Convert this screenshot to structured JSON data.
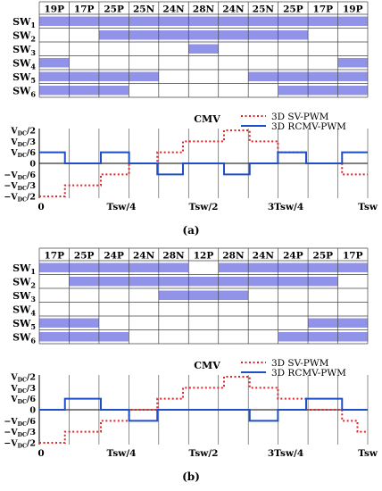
{
  "colors": {
    "bar": "#9193e8",
    "sv": "#e0242a",
    "rcmv": "#1f4fc4",
    "grid": "#444444"
  },
  "panels": [
    {
      "caption": "(a)",
      "vectors": [
        "19P",
        "17P",
        "25P",
        "25N",
        "24N",
        "28N",
        "24N",
        "25N",
        "25P",
        "17P",
        "19P"
      ],
      "switches": [
        {
          "label": "SW",
          "sub": "1",
          "on": [
            [
              0,
              11
            ]
          ]
        },
        {
          "label": "SW",
          "sub": "2",
          "on": [
            [
              2,
              9
            ]
          ]
        },
        {
          "label": "SW",
          "sub": "3",
          "on": [
            [
              5,
              6
            ]
          ]
        },
        {
          "label": "SW",
          "sub": "4",
          "on": [
            [
              0,
              1
            ],
            [
              10,
              11
            ]
          ]
        },
        {
          "label": "SW",
          "sub": "5",
          "on": [
            [
              0,
              4
            ],
            [
              7,
              11
            ]
          ]
        },
        {
          "label": "SW",
          "sub": "6",
          "on": [
            [
              0,
              3
            ],
            [
              8,
              11
            ]
          ]
        }
      ],
      "cmv_title": "CMV",
      "legend": [
        "3D SV-PWM",
        "3D RCMV-PWM"
      ],
      "y_ticks": [
        "V_DC/2",
        "V_DC/3",
        "V_DC/6",
        "0",
        "−V_DC/6",
        "−V_DC/3",
        "−V_DC/2"
      ],
      "x_ticks": [
        "0",
        "Tsw/4",
        "Tsw/2",
        "3Tsw/4",
        "Tsw"
      ],
      "sv_steps": [
        {
          "t": 0,
          "v": -3
        },
        {
          "t": 0.0781,
          "v": -2
        },
        {
          "t": 0.1875,
          "v": -1
        },
        {
          "t": 0.2734,
          "v": 0
        },
        {
          "t": 0.3594,
          "v": 1
        },
        {
          "t": 0.4375,
          "v": 2
        },
        {
          "t": 0.5625,
          "v": 3
        },
        {
          "t": 0.6406,
          "v": 2
        },
        {
          "t": 0.7266,
          "v": 1
        },
        {
          "t": 0.8125,
          "v": 0
        },
        {
          "t": 0.9219,
          "v": -1
        },
        {
          "t": 1.0,
          "v": -1
        }
      ],
      "rcmv_steps": [
        {
          "t": 0,
          "v": 1
        },
        {
          "t": 0.0781,
          "v": 0
        },
        {
          "t": 0.1875,
          "v": 1
        },
        {
          "t": 0.2734,
          "v": 0
        },
        {
          "t": 0.3594,
          "v": -1
        },
        {
          "t": 0.4375,
          "v": 0
        },
        {
          "t": 0.5625,
          "v": -1
        },
        {
          "t": 0.6406,
          "v": 0
        },
        {
          "t": 0.7266,
          "v": 1
        },
        {
          "t": 0.8125,
          "v": 0
        },
        {
          "t": 0.9219,
          "v": 1
        },
        {
          "t": 1.0,
          "v": 1
        }
      ]
    },
    {
      "caption": "(b)",
      "vectors": [
        "17P",
        "25P",
        "24P",
        "24N",
        "28N",
        "12P",
        "28N",
        "24N",
        "24P",
        "25P",
        "17P"
      ],
      "switches": [
        {
          "label": "SW",
          "sub": "1",
          "on": [
            [
              0,
              5
            ],
            [
              6,
              11
            ]
          ]
        },
        {
          "label": "SW",
          "sub": "2",
          "on": [
            [
              1,
              10
            ]
          ]
        },
        {
          "label": "SW",
          "sub": "3",
          "on": [
            [
              4,
              7
            ]
          ]
        },
        {
          "label": "SW",
          "sub": "4",
          "on": []
        },
        {
          "label": "SW",
          "sub": "5",
          "on": [
            [
              0,
              2
            ],
            [
              9,
              11
            ]
          ]
        },
        {
          "label": "SW",
          "sub": "6",
          "on": [
            [
              0,
              3
            ],
            [
              8,
              11
            ]
          ]
        }
      ],
      "cmv_title": "CMV",
      "legend": [
        "3D SV-PWM",
        "3D RCMV-PWM"
      ],
      "y_ticks": [
        "V_DC/2",
        "V_DC/3",
        "V_DC/6",
        "0",
        "−V_DC/6",
        "−V_DC/3",
        "−V_DC/2"
      ],
      "x_ticks": [
        "0",
        "Tsw/4",
        "Tsw/2",
        "3Tsw/4",
        "Tsw"
      ],
      "sv_steps": [
        {
          "t": 0,
          "v": -3
        },
        {
          "t": 0.0781,
          "v": -2
        },
        {
          "t": 0.1875,
          "v": -1
        },
        {
          "t": 0.2734,
          "v": 0
        },
        {
          "t": 0.3594,
          "v": 1
        },
        {
          "t": 0.4375,
          "v": 2
        },
        {
          "t": 0.5625,
          "v": 3
        },
        {
          "t": 0.6406,
          "v": 2
        },
        {
          "t": 0.7266,
          "v": 1
        },
        {
          "t": 0.8125,
          "v": 0
        },
        {
          "t": 0.9219,
          "v": -1
        },
        {
          "t": 0.9688,
          "v": -2
        },
        {
          "t": 1.0,
          "v": -2
        }
      ],
      "rcmv_steps": [
        {
          "t": 0,
          "v": 0
        },
        {
          "t": 0.0781,
          "v": 1
        },
        {
          "t": 0.1875,
          "v": 0
        },
        {
          "t": 0.2734,
          "v": -1
        },
        {
          "t": 0.3594,
          "v": 0
        },
        {
          "t": 0.4375,
          "v": 0
        },
        {
          "t": 0.5625,
          "v": 0
        },
        {
          "t": 0.6406,
          "v": -1
        },
        {
          "t": 0.7266,
          "v": 0
        },
        {
          "t": 0.8125,
          "v": 1
        },
        {
          "t": 0.9219,
          "v": 0
        },
        {
          "t": 1.0,
          "v": 0
        }
      ]
    }
  ]
}
